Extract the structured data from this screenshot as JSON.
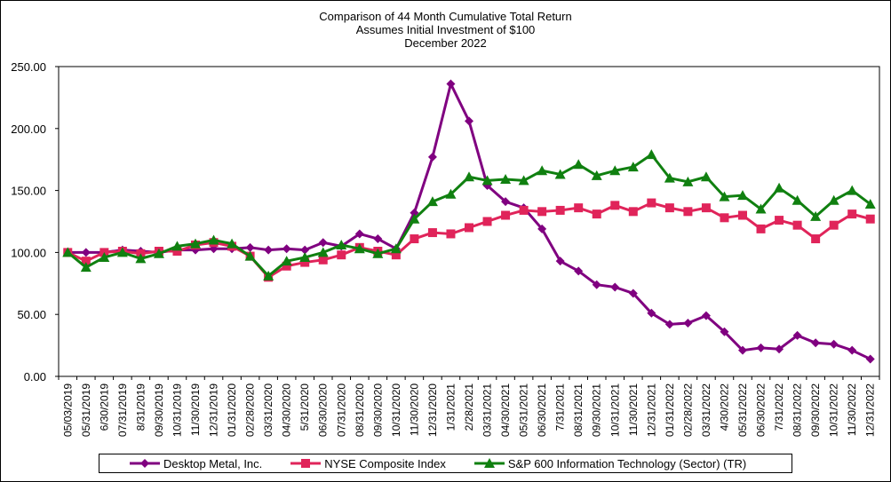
{
  "chart_data": {
    "type": "line",
    "title": [
      "Comparison of 44 Month Cumulative Total Return",
      "Assumes Initial Investment of $100",
      "December 2022"
    ],
    "xlabel": "",
    "ylabel": "",
    "ylim": [
      0,
      250
    ],
    "yticks": [
      "0.00",
      "50.00",
      "100.00",
      "150.00",
      "200.00",
      "250.00"
    ],
    "grid": false,
    "legend_position": "bottom",
    "categories": [
      "05/03/2019",
      "05/31/2019",
      "6/30/2019",
      "07/31/2019",
      "8/31/2019",
      "09/30/2019",
      "10/31/2019",
      "11/30/2019",
      "12/31/2019",
      "01/31/2020",
      "02/28/2020",
      "03/31/2020",
      "04/30/2020",
      "5/31/2020",
      "06/30/2020",
      "07/31/2020",
      "08/31/2020",
      "09/30/2020",
      "10/31/2020",
      "11/30/2020",
      "12/31/2020",
      "1/31/2021",
      "2/28/2021",
      "03/31/2021",
      "04/30/2021",
      "05/31/2021",
      "06/30/2021",
      "7/31/2021",
      "08/31/2021",
      "09/30/2021",
      "10/31/2021",
      "11/30/2021",
      "12/31/2021",
      "01/31/2022",
      "02/28/2022",
      "03/31/2022",
      "4/30/2022",
      "05/31/2022",
      "06/30/2022",
      "7/31/2022",
      "08/31/2022",
      "09/30/2022",
      "10/31/2022",
      "11/30/2022",
      "12/31/2022"
    ],
    "series": [
      {
        "name": "Desktop Metal, Inc.",
        "color": "#800080",
        "marker": "diamond",
        "values": [
          100,
          100,
          100,
          102,
          101,
          100,
          102,
          102,
          103,
          103,
          104,
          102,
          103,
          102,
          108,
          105,
          115,
          111,
          103,
          132,
          177,
          236,
          206,
          154,
          141,
          136,
          119,
          93,
          85,
          74,
          72,
          67,
          51,
          42,
          43,
          49,
          36,
          21,
          23,
          22,
          33,
          27,
          26,
          21,
          14
        ]
      },
      {
        "name": "NYSE Composite Index",
        "color": "#e0245a",
        "marker": "square",
        "values": [
          100,
          93,
          100,
          101,
          99,
          101,
          101,
          106,
          108,
          105,
          97,
          80,
          89,
          92,
          94,
          98,
          104,
          101,
          98,
          111,
          116,
          115,
          120,
          125,
          130,
          134,
          133,
          134,
          136,
          131,
          138,
          133,
          140,
          136,
          133,
          136,
          128,
          130,
          119,
          126,
          122,
          111,
          122,
          131,
          127
        ]
      },
      {
        "name": "S&P 600 Information Technology (Sector) (TR)",
        "color": "#108010",
        "marker": "triangle",
        "values": [
          100,
          88,
          96,
          100,
          95,
          99,
          105,
          107,
          110,
          107,
          97,
          81,
          93,
          96,
          100,
          106,
          103,
          99,
          103,
          127,
          141,
          147,
          161,
          158,
          159,
          158,
          166,
          163,
          171,
          162,
          166,
          169,
          179,
          160,
          157,
          161,
          145,
          146,
          135,
          152,
          142,
          129,
          142,
          150,
          139
        ]
      }
    ]
  }
}
